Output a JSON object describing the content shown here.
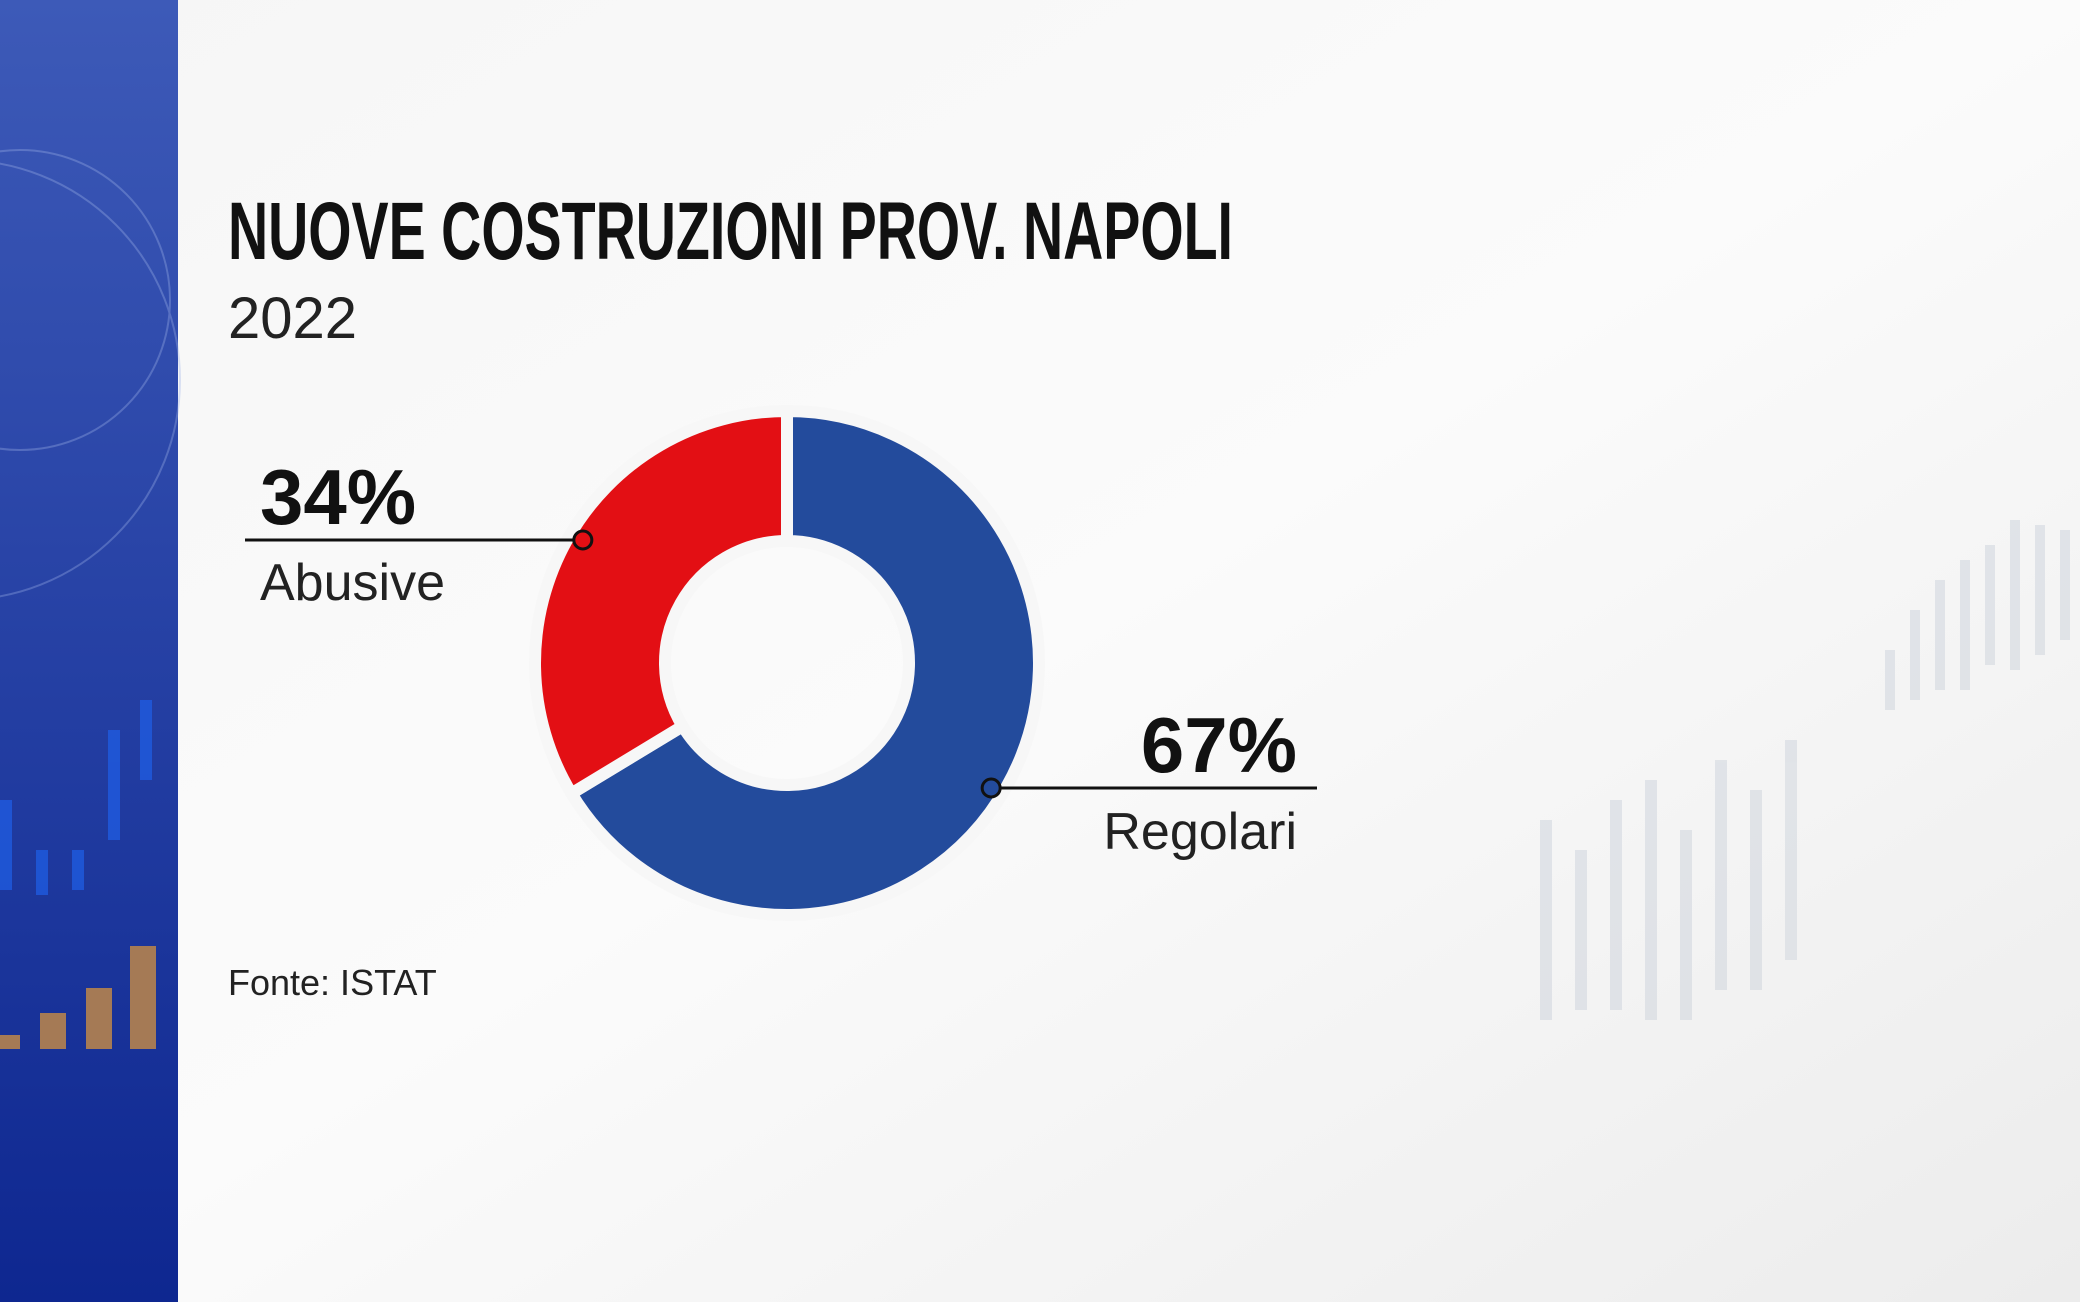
{
  "chart_data": {
    "type": "donut",
    "title": "NUOVE COSTRUZIONI PROV. NAPOLI",
    "subtitle": "2022",
    "source": "Fonte: ISTAT",
    "categories": [
      "Regolari",
      "Abusive"
    ],
    "values": [
      67,
      34
    ],
    "value_labels": [
      "67%",
      "34%"
    ],
    "colors": [
      "#234b9c",
      "#e30f14"
    ]
  }
}
